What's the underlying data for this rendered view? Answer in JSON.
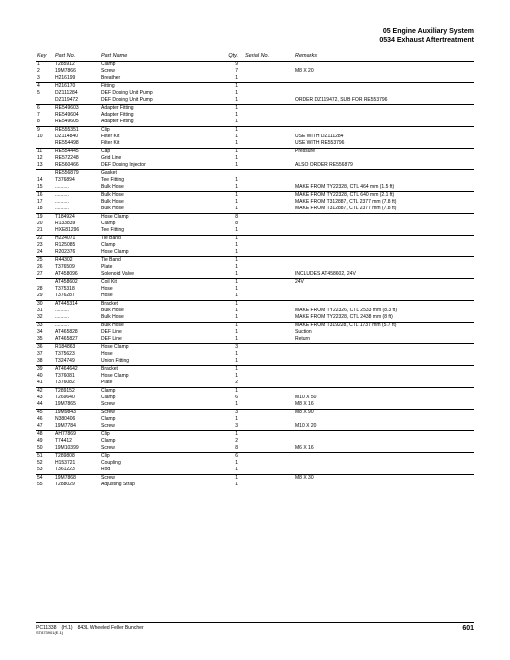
{
  "header": {
    "title1": "05 Engine Auxiliary System",
    "title2": "0534 Exhaust Aftertreatment"
  },
  "columns": {
    "key": "Key",
    "partno": "Part No.",
    "pname": "Part Name",
    "qty": "Qty.",
    "serial": "Serial No.",
    "remarks": "Remarks"
  },
  "rows": [
    {
      "k": "1",
      "p": "T285912",
      "n": "Clamp",
      "q": "9",
      "s": "",
      "r": ""
    },
    {
      "k": "2",
      "p": "19M7866",
      "n": "Screw",
      "q": "7",
      "s": "",
      "r": "M8 X 20"
    },
    {
      "k": "3",
      "p": "H216199",
      "n": "Breather",
      "q": "1",
      "s": "",
      "r": "",
      "end": true
    },
    {
      "k": "4",
      "p": "H216170",
      "n": "Fitting",
      "q": "1",
      "s": "",
      "r": ""
    },
    {
      "k": "5",
      "p": "DZ111284",
      "n": "DEF Dosing Unit Pump",
      "q": "1",
      "s": "",
      "r": ""
    },
    {
      "k": "",
      "p": "DZ119472",
      "n": "DEF Dosing Unit Pump",
      "q": "1",
      "s": "",
      "r": "ORDER DZ119472, SUB FOR RE553796",
      "end": true
    },
    {
      "k": "6",
      "p": "RE549603",
      "n": "Adapter Fitting",
      "q": "1",
      "s": "",
      "r": ""
    },
    {
      "k": "7",
      "p": "RE549604",
      "n": "Adapter Fitting",
      "q": "1",
      "s": "",
      "r": ""
    },
    {
      "k": "8",
      "p": "RE549605",
      "n": "Adapter Fitting",
      "q": "1",
      "s": "",
      "r": "",
      "end": true
    },
    {
      "k": "9",
      "p": "RE555351",
      "n": "Clip",
      "q": "1",
      "s": "",
      "r": ""
    },
    {
      "k": "10",
      "p": "DZ114840",
      "n": "Filter Kit",
      "q": "1",
      "s": "",
      "r": "USE WITH DZ111284"
    },
    {
      "k": "",
      "p": "RE554498",
      "n": "Filter Kit",
      "q": "1",
      "s": "",
      "r": "USE WITH RE553796",
      "end": true
    },
    {
      "k": "11",
      "p": "RE554445",
      "n": "Cap",
      "q": "1",
      "s": "",
      "r": "Pressure"
    },
    {
      "k": "12",
      "p": "RE572248",
      "n": "Grid Line",
      "q": "1",
      "s": "",
      "r": ""
    },
    {
      "k": "13",
      "p": "RE560466",
      "n": "DEF Dosing Injector",
      "q": "1",
      "s": "",
      "r": "ALSO ORDER RE556879",
      "end": true
    },
    {
      "k": "",
      "p": "RE556879",
      "n": "Gasket",
      "q": "",
      "s": "",
      "r": ""
    },
    {
      "k": "14",
      "p": "T376894",
      "n": "Tee Fitting",
      "q": "1",
      "s": "",
      "r": ""
    },
    {
      "k": "15",
      "p": "..........",
      "n": "Bulk Hose",
      "q": "1",
      "s": "",
      "r": "MAKE FROM TY22328, CTL 464 mm (1.5 ft)",
      "end": true
    },
    {
      "k": "16",
      "p": "..........",
      "n": "Bulk Hose",
      "q": "1",
      "s": "",
      "r": "MAKE FROM TY22328, CTL 640 mm (2.1 ft)"
    },
    {
      "k": "17",
      "p": "..........",
      "n": "Bulk Hose",
      "q": "1",
      "s": "",
      "r": "MAKE FROM T312887, CTL 2377 mm (7.8 ft)"
    },
    {
      "k": "18",
      "p": "..........",
      "n": "Bulk Hose",
      "q": "1",
      "s": "",
      "r": "MAKE FROM T312887, CTL 2377 mm (7.8 ft)",
      "end": true
    },
    {
      "k": "19",
      "p": "T184924",
      "n": "Hose Clamp",
      "q": "8",
      "s": "",
      "r": ""
    },
    {
      "k": "20",
      "p": "R133839",
      "n": "Clamp",
      "q": "8",
      "s": "",
      "r": ""
    },
    {
      "k": "21",
      "p": "HXE81296",
      "n": "Tee Fitting",
      "q": "1",
      "s": "",
      "r": "",
      "end": true
    },
    {
      "k": "22",
      "p": "H224071",
      "n": "Tie Band",
      "q": "1",
      "s": "",
      "r": ""
    },
    {
      "k": "23",
      "p": "R125085",
      "n": "Clamp",
      "q": "1",
      "s": "",
      "r": ""
    },
    {
      "k": "24",
      "p": "R202376",
      "n": "Hose Clamp",
      "q": "1",
      "s": "",
      "r": "",
      "end": true
    },
    {
      "k": "25",
      "p": "R44302",
      "n": "Tie Band",
      "q": "1",
      "s": "",
      "r": ""
    },
    {
      "k": "26",
      "p": "T376509",
      "n": "Plate",
      "q": "1",
      "s": "",
      "r": ""
    },
    {
      "k": "27",
      "p": "AT458096",
      "n": "Solenoid Valve",
      "q": "1",
      "s": "",
      "r": "INCLUDES AT458602, 24V",
      "end": true
    },
    {
      "k": "",
      "p": "AT458602",
      "n": "Coil Kit",
      "q": "1",
      "s": "",
      "r": "24V"
    },
    {
      "k": "28",
      "p": "T375318",
      "n": "Hose",
      "q": "1",
      "s": "",
      "r": ""
    },
    {
      "k": "29",
      "p": "T376287",
      "n": "Hose",
      "q": "1",
      "s": "",
      "r": "",
      "end": true
    },
    {
      "k": "30",
      "p": "AT445314",
      "n": "Bracket",
      "q": "1",
      "s": "",
      "r": ""
    },
    {
      "k": "31",
      "p": "..........",
      "n": "Bulk Hose",
      "q": "1",
      "s": "",
      "r": "MAKE FROM TY22326, CTL 2533 mm (8.3 ft)"
    },
    {
      "k": "32",
      "p": "..........",
      "n": "Bulk Hose",
      "q": "1",
      "s": "",
      "r": "MAKE FROM TY22328, CTL 2438 mm (8 ft)",
      "end": true
    },
    {
      "k": "33",
      "p": "..........",
      "n": "Bulk Hose",
      "q": "1",
      "s": "",
      "r": "MAKE FROM T319228, CTL 1737 mm (5.7 ft)"
    },
    {
      "k": "34",
      "p": "AT465828",
      "n": "DEF Line",
      "q": "1",
      "s": "",
      "r": "Suction"
    },
    {
      "k": "35",
      "p": "AT465827",
      "n": "DEF Line",
      "q": "1",
      "s": "",
      "r": "Return",
      "end": true
    },
    {
      "k": "36",
      "p": "R184863",
      "n": "Hose Clamp",
      "q": "3",
      "s": "",
      "r": ""
    },
    {
      "k": "37",
      "p": "T375623",
      "n": "Hose",
      "q": "1",
      "s": "",
      "r": ""
    },
    {
      "k": "38",
      "p": "T324749",
      "n": "Union Fitting",
      "q": "1",
      "s": "",
      "r": "",
      "end": true
    },
    {
      "k": "39",
      "p": "AT464642",
      "n": "Bracket",
      "q": "1",
      "s": "",
      "r": ""
    },
    {
      "k": "40",
      "p": "T376081",
      "n": "Hose Clamp",
      "q": "1",
      "s": "",
      "r": ""
    },
    {
      "k": "41",
      "p": "T376082",
      "n": "Plate",
      "q": "2",
      "s": "",
      "r": "",
      "end": true
    },
    {
      "k": "42",
      "p": "T289152",
      "n": "Clamp",
      "q": "1",
      "s": "",
      "r": ""
    },
    {
      "k": "43",
      "p": "T269640",
      "n": "Clamp",
      "q": "6",
      "s": "",
      "r": "M10 X 50"
    },
    {
      "k": "44",
      "p": "19M7865",
      "n": "Screw",
      "q": "1",
      "s": "",
      "r": "M8 X 16",
      "end": true
    },
    {
      "k": "45",
      "p": "19M9843",
      "n": "Screw",
      "q": "3",
      "s": "",
      "r": "M8 X 90"
    },
    {
      "k": "46",
      "p": "N380406",
      "n": "Clamp",
      "q": "1",
      "s": "",
      "r": ""
    },
    {
      "k": "47",
      "p": "19M7784",
      "n": "Screw",
      "q": "3",
      "s": "",
      "r": "M10 X 20",
      "end": true
    },
    {
      "k": "48",
      "p": "AH77869",
      "n": "Clip",
      "q": "1",
      "s": "",
      "r": ""
    },
    {
      "k": "49",
      "p": "T74412",
      "n": "Clamp",
      "q": "2",
      "s": "",
      "r": ""
    },
    {
      "k": "50",
      "p": "19M10399",
      "n": "Screw",
      "q": "8",
      "s": "",
      "r": "M6 X 16",
      "end": true
    },
    {
      "k": "51",
      "p": "T289808",
      "n": "Clip",
      "q": "6",
      "s": "",
      "r": ""
    },
    {
      "k": "52",
      "p": "H153721",
      "n": "Coupling",
      "q": "1",
      "s": "",
      "r": ""
    },
    {
      "k": "53",
      "p": "T361223",
      "n": "Rod",
      "q": "1",
      "s": "",
      "r": "",
      "end": true
    },
    {
      "k": "54",
      "p": "19M7868",
      "n": "Screw",
      "q": "1",
      "s": "",
      "r": "M8 X 30"
    },
    {
      "k": "55",
      "p": "T288029",
      "n": "Adjusting Strap",
      "q": "1",
      "s": "",
      "r": ""
    }
  ],
  "footer": {
    "left_main": "PC11338 (H.1) 843L Wheeled Feller Buncher",
    "left_sub": "ST873901(E.1)",
    "page": "601"
  }
}
